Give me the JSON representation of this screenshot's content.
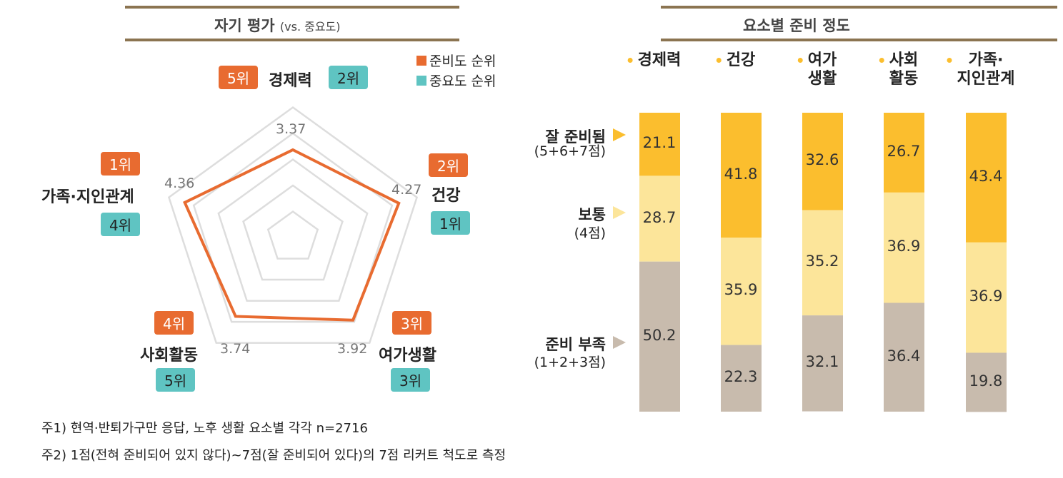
{
  "chart_data": [
    {
      "type": "radar",
      "title": "자기 평가",
      "title_sub": "(vs. 중요도)",
      "legend": [
        {
          "label": "준비도 순위",
          "color": "#E86B30"
        },
        {
          "label": "중요도 순위",
          "color": "#5FC4C2"
        }
      ],
      "axes": [
        "경제력",
        "건강",
        "여가생활",
        "사회활동",
        "가족·지인관계"
      ],
      "values": [
        3.37,
        4.27,
        3.92,
        3.74,
        4.36
      ],
      "value_labels": [
        "3.37",
        "4.27",
        "3.92",
        "3.74",
        "4.36"
      ],
      "readiness_rank": [
        "5위",
        "2위",
        "3위",
        "4위",
        "1위"
      ],
      "importance_rank": [
        "2위",
        "1위",
        "3위",
        "5위",
        "4위"
      ],
      "rmax": 5,
      "rings": [
        1,
        2,
        3,
        4,
        5
      ]
    },
    {
      "type": "bar",
      "stacked": true,
      "title": "요소별 준비 정도",
      "categories": [
        "경제력",
        "건강",
        "여가\n생활",
        "사회\n활동",
        "가족·\n지인관계"
      ],
      "series": [
        {
          "name": "잘 준비됨",
          "sub": "(5+6+7점)",
          "color": "#FBBE2E",
          "values": [
            21.1,
            41.8,
            32.6,
            26.7,
            43.4
          ]
        },
        {
          "name": "보통",
          "sub": "(4점)",
          "color": "#FCE59A",
          "values": [
            28.7,
            35.9,
            35.2,
            36.9,
            36.9
          ]
        },
        {
          "name": "준비 부족",
          "sub": "(1+2+3점)",
          "color": "#C8BBAD",
          "values": [
            50.2,
            22.3,
            32.1,
            36.4,
            19.8
          ]
        }
      ],
      "ylim": [
        0,
        100
      ]
    }
  ],
  "notes": [
    "주1) 현역·반퇴가구만 응답, 노후 생활 요소별 각각 n=2716",
    "주2) 1점(전혀 준비되어 있지 않다)~7점(잘 준비되어 있다)의 7점 리커트 척도로 측정"
  ]
}
